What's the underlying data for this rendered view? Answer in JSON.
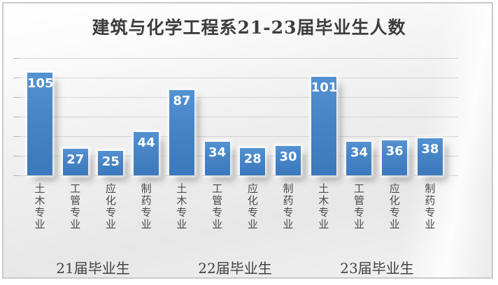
{
  "window": {
    "border_color": "#c9c9c9",
    "background_base": "#ededed"
  },
  "chart_data": {
    "type": "bar",
    "title": "建筑与化学工程系21-23届毕业生人数",
    "categories": [
      "土木专业",
      "工管专业",
      "应化专业",
      "制药专业",
      "土木专业",
      "工管专业",
      "应化专业",
      "制药专业",
      "土木专业",
      "工管专业",
      "应化专业",
      "制药专业"
    ],
    "values": [
      105,
      27,
      25,
      44,
      87,
      34,
      28,
      30,
      101,
      34,
      36,
      38
    ],
    "group_labels": [
      "21届毕业生",
      "22届毕业生",
      "23届毕业生"
    ],
    "groups": [
      {
        "label": "21届毕业生",
        "categories": [
          "土木专业",
          "工管专业",
          "应化专业",
          "制药专业"
        ],
        "values": [
          105,
          27,
          25,
          44
        ]
      },
      {
        "label": "22届毕业生",
        "categories": [
          "土木专业",
          "工管专业",
          "应化专业",
          "制药专业"
        ],
        "values": [
          87,
          34,
          28,
          30
        ]
      },
      {
        "label": "23届毕业生",
        "categories": [
          "土木专业",
          "工管专业",
          "应化专业",
          "制药专业"
        ],
        "values": [
          101,
          34,
          36,
          38
        ]
      }
    ],
    "xlabel": "",
    "ylabel": "",
    "ylim": [
      0,
      120
    ],
    "gridline_interval": 20,
    "grid": true,
    "legend": false,
    "data_labels": true,
    "y_axis_labels_visible": false,
    "bar_color": "#4381c1",
    "data_label_color": "#ffffff",
    "gridline_color": "#c8c8c8",
    "text_color": "#404040"
  }
}
